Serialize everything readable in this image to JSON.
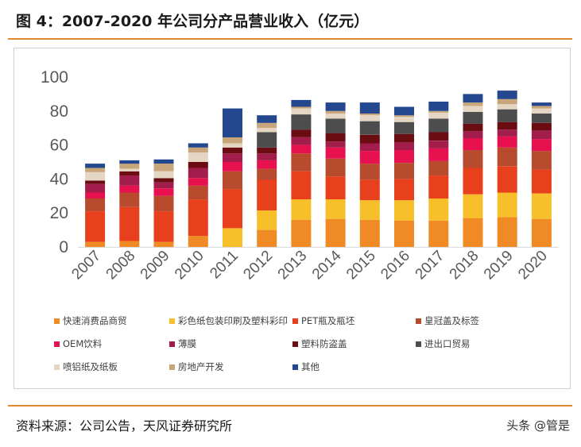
{
  "figure": {
    "title": "图 4：2007-2020 年公司分产品营业收入（亿元）",
    "source": "资料来源：公司公告，天风证券研究所",
    "watermark": "头条 @管是"
  },
  "chart_data": {
    "type": "bar",
    "stacked": true,
    "title": "",
    "xlabel": "",
    "ylabel": "",
    "ylim": [
      0,
      100
    ],
    "yticks": [
      0,
      20,
      40,
      60,
      80,
      100
    ],
    "grid": false,
    "legend_position": "bottom",
    "categories": [
      "2007",
      "2008",
      "2009",
      "2010",
      "2011",
      "2012",
      "2013",
      "2014",
      "2015",
      "2016",
      "2017",
      "2018",
      "2019",
      "2020"
    ],
    "series": [
      {
        "name": "快速消费品商贸",
        "color": "#f08a25",
        "values": [
          3,
          3.5,
          3,
          6.5,
          0,
          10,
          16,
          16.5,
          16,
          15.5,
          15.5,
          17,
          17.5,
          16.5
        ]
      },
      {
        "name": "彩色纸包装印刷及塑料彩印",
        "color": "#f7c02a",
        "values": [
          0,
          0,
          0,
          0,
          11,
          11.5,
          12,
          11.5,
          11.5,
          12,
          13,
          14,
          14.5,
          15
        ]
      },
      {
        "name": "PET瓶及瓶坯",
        "color": "#e8401c",
        "values": [
          18,
          20,
          18,
          21.5,
          23,
          18,
          16.5,
          13.5,
          12,
          12.5,
          13.5,
          15.5,
          15.5,
          14
        ]
      },
      {
        "name": "皇冠盖及标签",
        "color": "#b84a2e",
        "values": [
          7.5,
          8.5,
          9,
          8,
          10.5,
          6.5,
          10.5,
          10.5,
          9.5,
          9.5,
          8.5,
          10.5,
          11,
          11
        ]
      },
      {
        "name": "OEM饮料",
        "color": "#e8114f",
        "values": [
          3.5,
          4,
          4.5,
          4.5,
          5.5,
          5,
          5,
          6.5,
          7.5,
          7.5,
          7.5,
          7,
          6.5,
          7
        ]
      },
      {
        "name": "薄膜",
        "color": "#a21d4b",
        "values": [
          5,
          6,
          3.5,
          6,
          5,
          4,
          4.5,
          3.5,
          4.5,
          4.5,
          4.5,
          4,
          4,
          5
        ]
      },
      {
        "name": "塑料防盗盖",
        "color": "#6b0c13",
        "values": [
          2,
          2.5,
          2.5,
          3.5,
          3.5,
          3.5,
          4.5,
          5,
          5,
          5,
          5,
          4.5,
          4.5,
          4.5
        ]
      },
      {
        "name": "进出口贸易",
        "color": "#4d4d4d",
        "values": [
          0,
          0,
          0,
          0,
          0,
          9,
          9,
          8.5,
          8,
          7,
          8,
          7,
          7.5,
          5.5
        ]
      },
      {
        "name": "喷铝纸及纸板",
        "color": "#e4d6c3",
        "values": [
          5,
          1.5,
          4,
          5.5,
          2.5,
          2.5,
          3.5,
          3,
          3.5,
          3,
          3.5,
          3.5,
          3,
          3
        ]
      },
      {
        "name": "房地产开发",
        "color": "#c9a57a",
        "values": [
          2.5,
          3,
          4.5,
          3,
          3.5,
          3,
          1,
          1.5,
          1,
          1,
          1,
          2,
          3,
          1.5
        ]
      },
      {
        "name": "其他",
        "color": "#24488f",
        "values": [
          2.5,
          2,
          2.5,
          2.5,
          17,
          4.5,
          4,
          5,
          6.5,
          5,
          5.5,
          5,
          5,
          2
        ]
      }
    ]
  }
}
